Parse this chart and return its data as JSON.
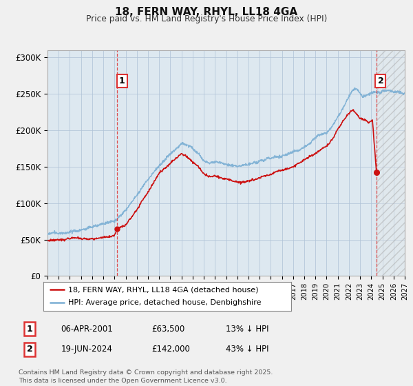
{
  "title": "18, FERN WAY, RHYL, LL18 4GA",
  "subtitle": "Price paid vs. HM Land Registry's House Price Index (HPI)",
  "ylim": [
    0,
    310000
  ],
  "yticks": [
    0,
    50000,
    100000,
    150000,
    200000,
    250000,
    300000
  ],
  "ytick_labels": [
    "£0",
    "£50K",
    "£100K",
    "£150K",
    "£200K",
    "£250K",
    "£300K"
  ],
  "hpi_color": "#7bafd4",
  "price_color": "#cc1111",
  "vline_color": "#dd3333",
  "t1_year": 2001.25,
  "t1_price": 63500,
  "t2_year": 2024.47,
  "t2_price": 142000,
  "legend_entries": [
    {
      "label": "18, FERN WAY, RHYL, LL18 4GA (detached house)",
      "color": "#cc1111"
    },
    {
      "label": "HPI: Average price, detached house, Denbighshire",
      "color": "#7bafd4"
    }
  ],
  "table_rows": [
    {
      "num": "1",
      "date": "06-APR-2001",
      "price": "£63,500",
      "hpi": "13% ↓ HPI"
    },
    {
      "num": "2",
      "date": "19-JUN-2024",
      "price": "£142,000",
      "hpi": "43% ↓ HPI"
    }
  ],
  "footnote": "Contains HM Land Registry data © Crown copyright and database right 2025.\nThis data is licensed under the Open Government Licence v3.0.",
  "bg_color": "#f0f0f0",
  "plot_bg_color": "#dde8f0",
  "grid_color": "#b0c4d8"
}
